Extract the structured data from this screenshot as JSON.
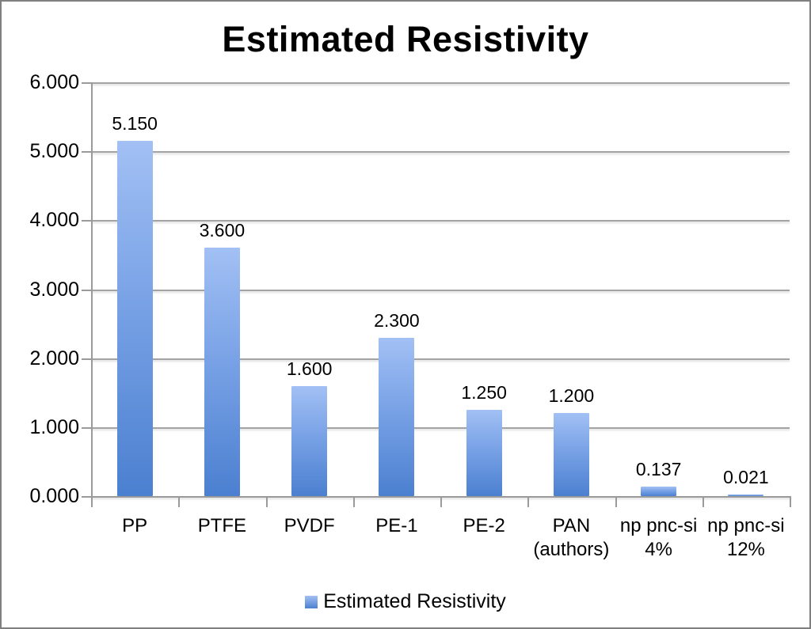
{
  "chart_data": {
    "type": "bar",
    "title": "Estimated Resistivity",
    "legend": "Estimated Resistivity",
    "legend_position": "bottom",
    "grid": true,
    "ylim": [
      0,
      6
    ],
    "ytick_labels": [
      "0.000",
      "1.000",
      "2.000",
      "3.000",
      "4.000",
      "5.000",
      "6.000"
    ],
    "categories": [
      "PP",
      "PTFE",
      "PVDF",
      "PE-1",
      "PE-2",
      "PAN (authors)",
      "np pnc-si 4%",
      "np pnc-si 12%"
    ],
    "category_label_lines": [
      [
        "PP"
      ],
      [
        "PTFE"
      ],
      [
        "PVDF"
      ],
      [
        "PE-1"
      ],
      [
        "PE-2"
      ],
      [
        "PAN",
        "(authors)"
      ],
      [
        "np pnc-si",
        "4%"
      ],
      [
        "np pnc-si",
        "12%"
      ]
    ],
    "values": [
      5.15,
      3.6,
      1.6,
      2.3,
      1.25,
      1.2,
      0.137,
      0.021
    ],
    "value_labels": [
      "5.150",
      "3.600",
      "1.600",
      "2.300",
      "1.250",
      "1.200",
      "0.137",
      "0.021"
    ],
    "colors": {
      "bar_top": "#a2c0f4",
      "bar_mid": "#79a2e6",
      "bar_bottom": "#4b80d0",
      "gridline": "#a3a3a3",
      "axis": "#9a9a9a",
      "text": "#000000",
      "frame_border": "#7f7f7f",
      "background": "#ffffff"
    }
  }
}
